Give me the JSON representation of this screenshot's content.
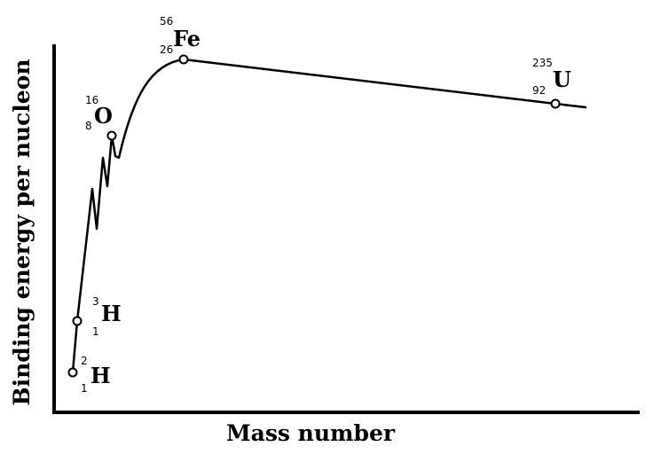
{
  "diagram": {
    "x_axis_label": "Mass number",
    "y_axis_label": "Binding energy per nucleon"
  },
  "nuclides": [
    {
      "id": "h2",
      "symbol": "H",
      "mass_number": "2",
      "atomic_number": "1"
    },
    {
      "id": "h3",
      "symbol": "H",
      "mass_number": "3",
      "atomic_number": "1"
    },
    {
      "id": "o16",
      "symbol": "O",
      "mass_number": "16",
      "atomic_number": "8"
    },
    {
      "id": "fe56",
      "symbol": "Fe",
      "mass_number": "56",
      "atomic_number": "26"
    },
    {
      "id": "u235",
      "symbol": "U",
      "mass_number": "235",
      "atomic_number": "92"
    }
  ]
}
